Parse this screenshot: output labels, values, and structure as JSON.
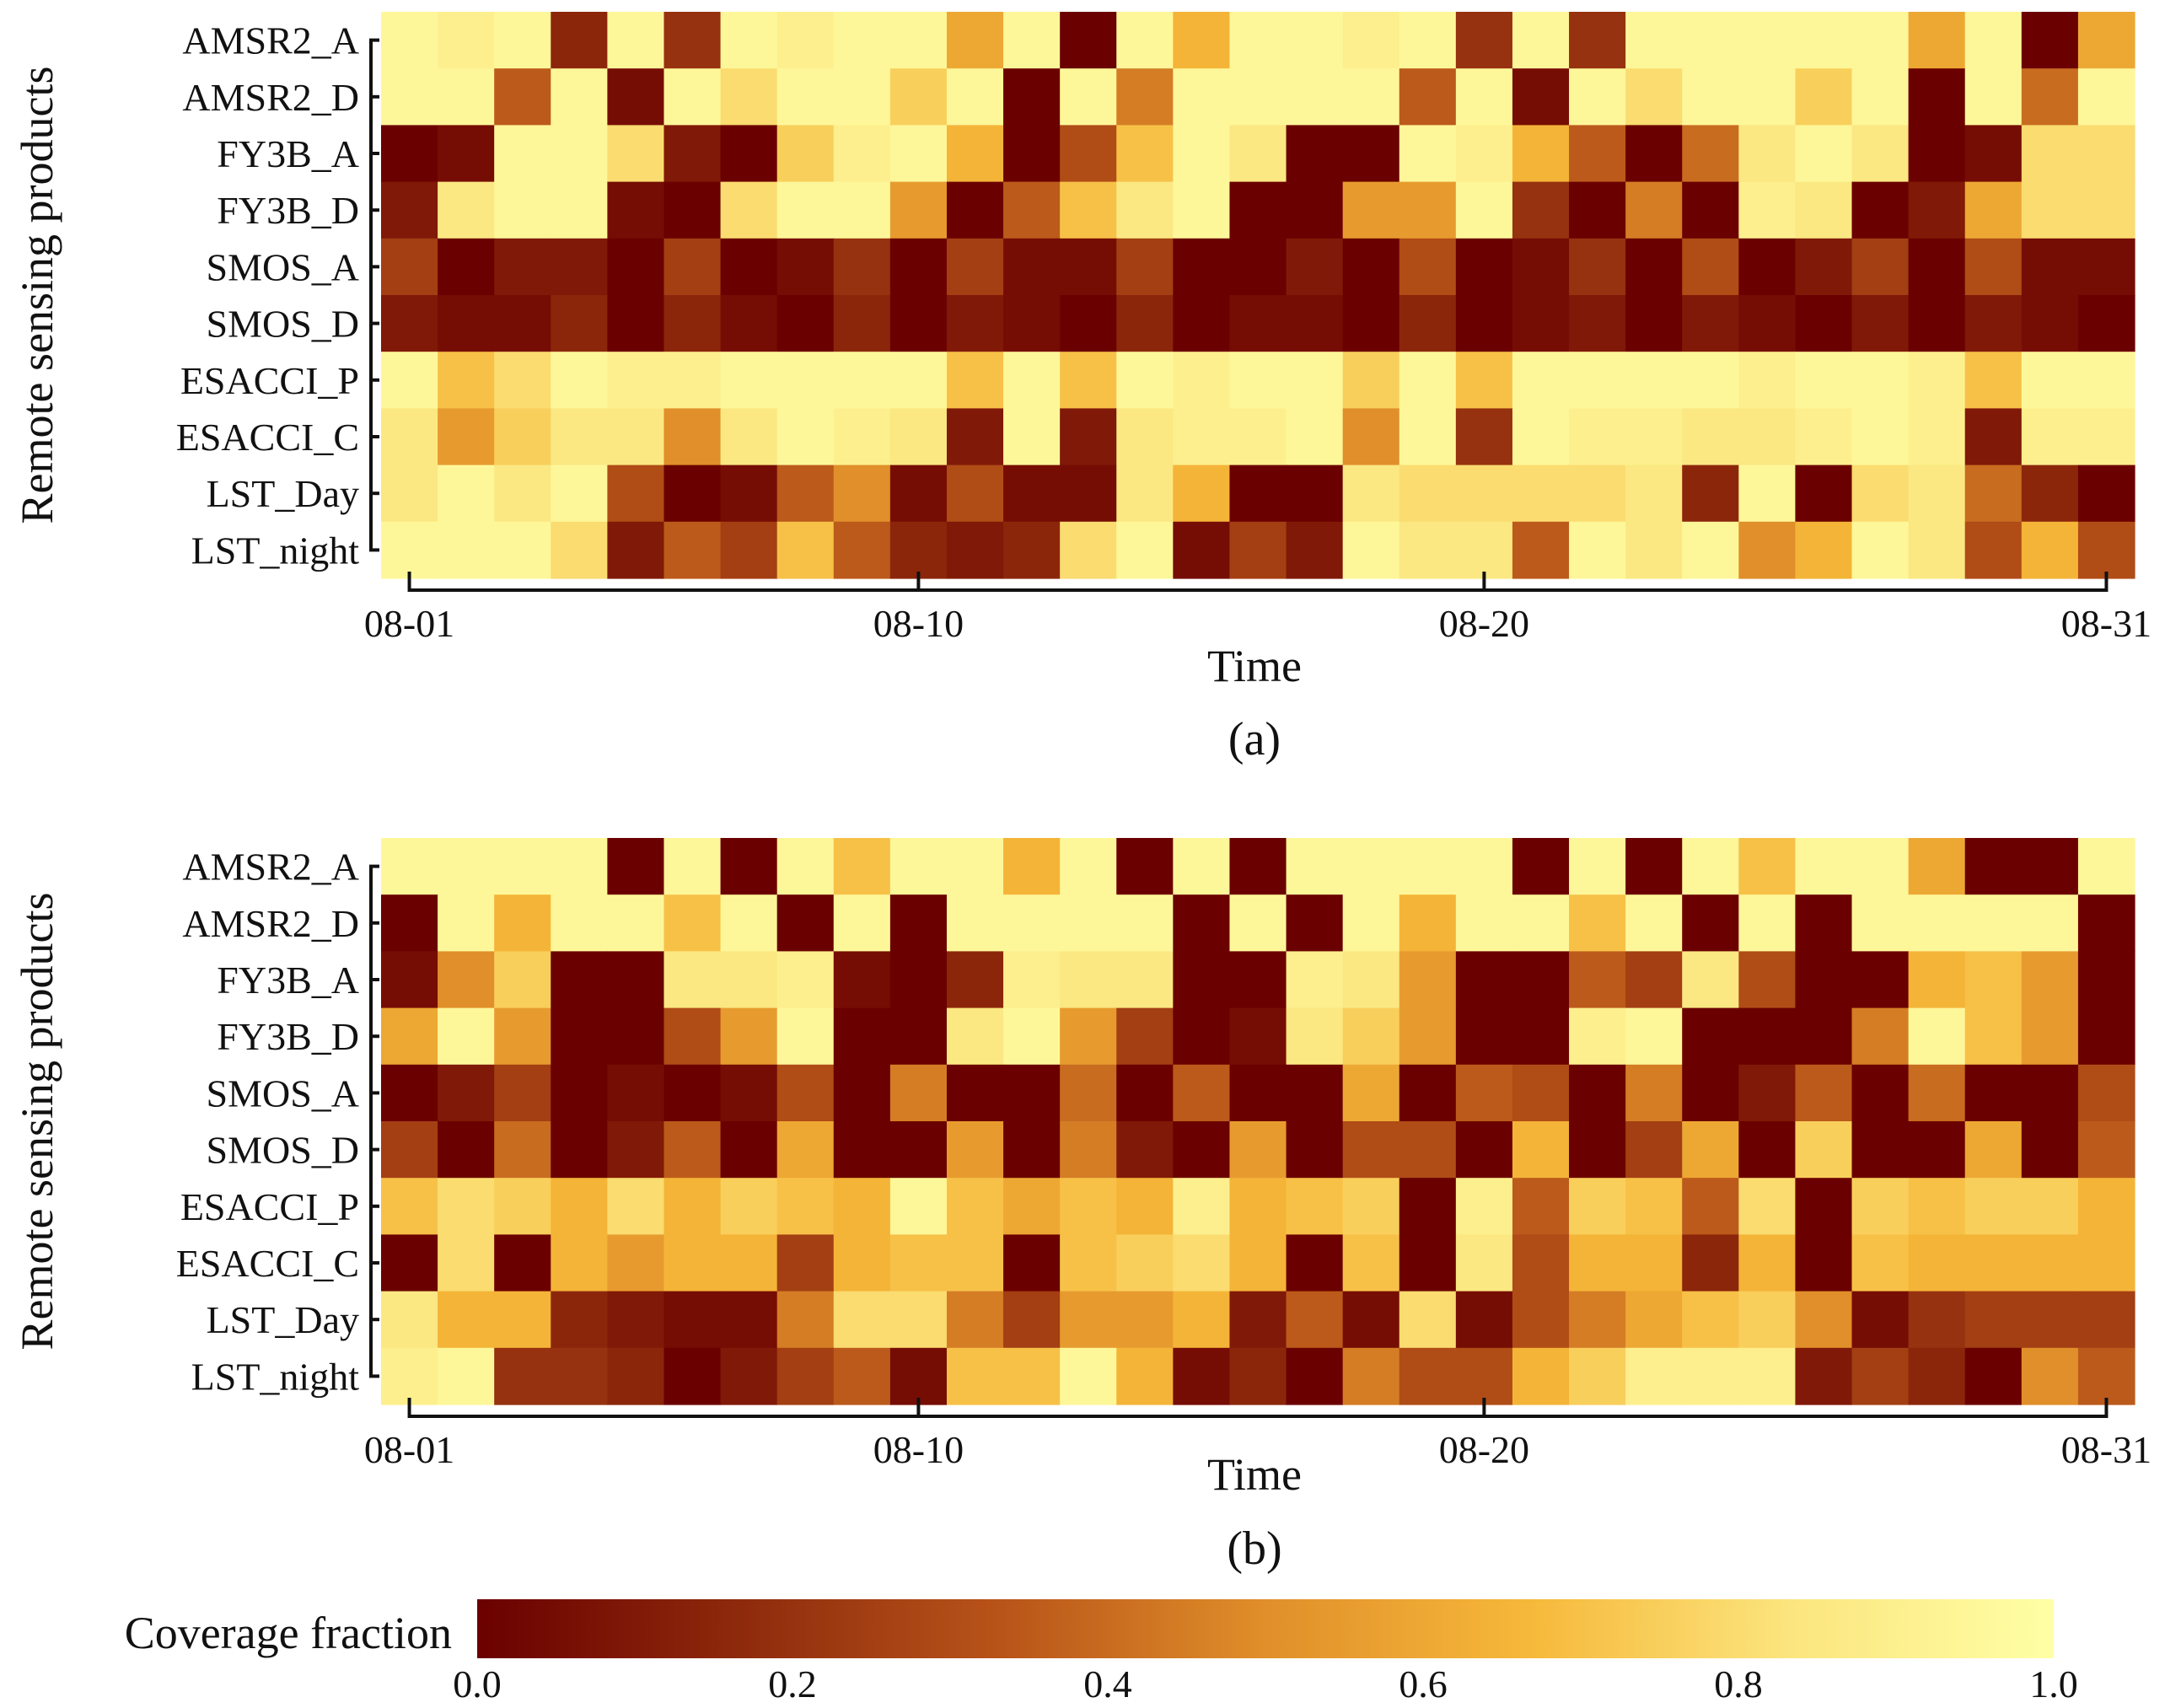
{
  "colors": {
    "scale": [
      "#6b0000",
      "#8e2a0c",
      "#b85419",
      "#e08f2a",
      "#f6b83a",
      "#fbe57e",
      "#ffffa6"
    ],
    "axis": "#111111"
  },
  "chart_data": [
    {
      "type": "heatmap",
      "caption": "(a)",
      "xlabel": "Time",
      "ylabel": "Remote sensing products",
      "x_tick_labels": [
        "08-01",
        "08-10",
        "08-20",
        "08-31"
      ],
      "x_tick_columns": [
        0,
        9,
        19,
        30
      ],
      "rows": [
        "AMSR2_A",
        "AMSR2_D",
        "FY3B_A",
        "FY3B_D",
        "SMOS_A",
        "SMOS_D",
        "ESACCI_P",
        "ESACCI_C",
        "LST_Day",
        "LST_night"
      ],
      "days": 31,
      "values": [
        [
          0.95,
          0.9,
          0.95,
          0.15,
          0.95,
          0.2,
          0.95,
          0.9,
          0.95,
          0.95,
          0.6,
          0.95,
          0.0,
          0.95,
          0.65,
          0.95,
          0.95,
          0.9,
          0.95,
          0.2,
          0.95,
          0.2,
          0.95,
          0.95,
          0.95,
          0.95,
          0.95,
          0.6,
          0.95,
          0.0,
          0.6
        ],
        [
          0.95,
          0.95,
          0.35,
          0.95,
          0.05,
          0.95,
          0.8,
          0.95,
          0.95,
          0.75,
          0.95,
          0.0,
          0.95,
          0.45,
          0.95,
          0.95,
          0.95,
          0.95,
          0.35,
          0.95,
          0.05,
          0.95,
          0.8,
          0.95,
          0.95,
          0.75,
          0.95,
          0.0,
          0.95,
          0.4,
          0.95
        ],
        [
          0.0,
          0.05,
          0.95,
          0.95,
          0.8,
          0.1,
          0.0,
          0.75,
          0.9,
          0.95,
          0.65,
          0.0,
          0.3,
          0.7,
          0.95,
          0.85,
          0.0,
          0.0,
          0.95,
          0.9,
          0.65,
          0.35,
          0.0,
          0.4,
          0.85,
          0.95,
          0.85,
          0.0,
          0.05,
          0.8,
          0.8
        ],
        [
          0.1,
          0.85,
          0.95,
          0.95,
          0.05,
          0.0,
          0.8,
          0.95,
          0.95,
          0.55,
          0.0,
          0.35,
          0.7,
          0.85,
          0.95,
          0.0,
          0.0,
          0.55,
          0.55,
          0.95,
          0.2,
          0.0,
          0.45,
          0.0,
          0.9,
          0.85,
          0.0,
          0.1,
          0.6,
          0.8,
          0.8
        ],
        [
          0.25,
          0.0,
          0.1,
          0.1,
          0.0,
          0.25,
          0.0,
          0.05,
          0.2,
          0.0,
          0.25,
          0.05,
          0.05,
          0.25,
          0.0,
          0.0,
          0.1,
          0.0,
          0.3,
          0.0,
          0.05,
          0.2,
          0.0,
          0.3,
          0.0,
          0.1,
          0.25,
          0.0,
          0.3,
          0.05,
          0.05
        ],
        [
          0.1,
          0.05,
          0.05,
          0.15,
          0.0,
          0.15,
          0.05,
          0.0,
          0.15,
          0.0,
          0.1,
          0.05,
          0.0,
          0.15,
          0.0,
          0.05,
          0.05,
          0.0,
          0.15,
          0.0,
          0.05,
          0.1,
          0.0,
          0.1,
          0.05,
          0.0,
          0.1,
          0.0,
          0.1,
          0.05,
          0.0
        ],
        [
          0.95,
          0.7,
          0.8,
          0.95,
          0.9,
          0.9,
          0.95,
          0.95,
          0.95,
          0.95,
          0.7,
          0.95,
          0.7,
          0.95,
          0.9,
          0.95,
          0.95,
          0.75,
          0.95,
          0.7,
          0.95,
          0.95,
          0.95,
          0.95,
          0.9,
          0.95,
          0.95,
          0.9,
          0.7,
          0.95,
          0.95
        ],
        [
          0.85,
          0.55,
          0.75,
          0.85,
          0.85,
          0.5,
          0.85,
          0.95,
          0.9,
          0.85,
          0.1,
          0.95,
          0.1,
          0.85,
          0.9,
          0.9,
          0.95,
          0.5,
          0.95,
          0.2,
          0.95,
          0.9,
          0.9,
          0.85,
          0.85,
          0.9,
          0.95,
          0.9,
          0.1,
          0.9,
          0.9
        ],
        [
          0.85,
          0.95,
          0.85,
          0.95,
          0.3,
          0.0,
          0.05,
          0.35,
          0.5,
          0.05,
          0.3,
          0.05,
          0.05,
          0.85,
          0.65,
          0.0,
          0.0,
          0.85,
          0.8,
          0.8,
          0.8,
          0.8,
          0.85,
          0.15,
          0.95,
          0.0,
          0.8,
          0.85,
          0.4,
          0.15,
          0.0
        ],
        [
          0.95,
          0.95,
          0.95,
          0.8,
          0.1,
          0.35,
          0.25,
          0.7,
          0.35,
          0.15,
          0.1,
          0.15,
          0.8,
          0.95,
          0.05,
          0.25,
          0.1,
          0.95,
          0.85,
          0.85,
          0.35,
          0.95,
          0.85,
          0.95,
          0.5,
          0.65,
          0.95,
          0.85,
          0.3,
          0.65,
          0.3
        ]
      ]
    },
    {
      "type": "heatmap",
      "caption": "(b)",
      "xlabel": "Time",
      "ylabel": "Remote sensing products",
      "x_tick_labels": [
        "08-01",
        "08-10",
        "08-20",
        "08-31"
      ],
      "x_tick_columns": [
        0,
        9,
        19,
        30
      ],
      "rows": [
        "AMSR2_A",
        "AMSR2_D",
        "FY3B_A",
        "FY3B_D",
        "SMOS_A",
        "SMOS_D",
        "ESACCI_P",
        "ESACCI_C",
        "LST_Day",
        "LST_night"
      ],
      "days": 31,
      "values": [
        [
          0.95,
          0.95,
          0.95,
          0.95,
          0.0,
          0.95,
          0.0,
          0.95,
          0.7,
          0.95,
          0.95,
          0.65,
          0.95,
          0.0,
          0.95,
          0.0,
          0.95,
          0.95,
          0.95,
          0.95,
          0.0,
          0.95,
          0.0,
          0.95,
          0.7,
          0.95,
          0.95,
          0.6,
          0.0,
          0.0,
          0.95
        ],
        [
          0.0,
          0.95,
          0.65,
          0.95,
          0.95,
          0.7,
          0.95,
          0.0,
          0.95,
          0.0,
          0.95,
          0.95,
          0.95,
          0.95,
          0.0,
          0.95,
          0.0,
          0.95,
          0.65,
          0.95,
          0.95,
          0.7,
          0.95,
          0.0,
          0.95,
          0.0,
          0.95,
          0.95,
          0.95,
          0.95,
          0.0
        ],
        [
          0.05,
          0.5,
          0.75,
          0.0,
          0.0,
          0.85,
          0.85,
          0.9,
          0.05,
          0.0,
          0.15,
          0.9,
          0.85,
          0.85,
          0.0,
          0.0,
          0.9,
          0.85,
          0.55,
          0.0,
          0.0,
          0.35,
          0.25,
          0.85,
          0.3,
          0.0,
          0.0,
          0.65,
          0.7,
          0.55,
          0.0
        ],
        [
          0.6,
          0.95,
          0.55,
          0.0,
          0.0,
          0.3,
          0.55,
          0.95,
          0.0,
          0.0,
          0.85,
          0.95,
          0.55,
          0.25,
          0.0,
          0.05,
          0.85,
          0.75,
          0.55,
          0.0,
          0.0,
          0.9,
          0.95,
          0.0,
          0.0,
          0.0,
          0.45,
          0.95,
          0.7,
          0.55,
          0.0
        ],
        [
          0.0,
          0.1,
          0.25,
          0.0,
          0.05,
          0.0,
          0.05,
          0.3,
          0.0,
          0.45,
          0.0,
          0.0,
          0.4,
          0.0,
          0.35,
          0.0,
          0.0,
          0.6,
          0.0,
          0.35,
          0.3,
          0.0,
          0.45,
          0.0,
          0.1,
          0.35,
          0.0,
          0.4,
          0.0,
          0.0,
          0.3
        ],
        [
          0.25,
          0.0,
          0.4,
          0.0,
          0.1,
          0.35,
          0.0,
          0.6,
          0.0,
          0.0,
          0.55,
          0.0,
          0.45,
          0.1,
          0.0,
          0.55,
          0.0,
          0.3,
          0.3,
          0.0,
          0.65,
          0.0,
          0.25,
          0.6,
          0.0,
          0.75,
          0.0,
          0.0,
          0.6,
          0.0,
          0.35
        ],
        [
          0.7,
          0.8,
          0.75,
          0.65,
          0.8,
          0.65,
          0.75,
          0.7,
          0.65,
          0.95,
          0.7,
          0.6,
          0.7,
          0.65,
          0.9,
          0.65,
          0.7,
          0.75,
          0.0,
          0.9,
          0.35,
          0.75,
          0.7,
          0.35,
          0.8,
          0.0,
          0.75,
          0.7,
          0.75,
          0.75,
          0.65
        ],
        [
          0.0,
          0.8,
          0.0,
          0.65,
          0.55,
          0.65,
          0.65,
          0.25,
          0.65,
          0.7,
          0.7,
          0.0,
          0.7,
          0.75,
          0.8,
          0.65,
          0.0,
          0.7,
          0.0,
          0.85,
          0.3,
          0.65,
          0.65,
          0.15,
          0.65,
          0.0,
          0.7,
          0.65,
          0.65,
          0.65,
          0.65
        ],
        [
          0.85,
          0.65,
          0.65,
          0.15,
          0.1,
          0.05,
          0.05,
          0.45,
          0.8,
          0.8,
          0.45,
          0.25,
          0.55,
          0.55,
          0.65,
          0.1,
          0.35,
          0.05,
          0.8,
          0.05,
          0.3,
          0.45,
          0.6,
          0.7,
          0.75,
          0.5,
          0.05,
          0.2,
          0.25,
          0.25,
          0.25
        ],
        [
          0.9,
          0.95,
          0.2,
          0.2,
          0.15,
          0.0,
          0.1,
          0.25,
          0.35,
          0.05,
          0.7,
          0.7,
          0.95,
          0.65,
          0.05,
          0.15,
          0.0,
          0.45,
          0.3,
          0.3,
          0.65,
          0.75,
          0.9,
          0.9,
          0.9,
          0.1,
          0.25,
          0.15,
          0.0,
          0.5,
          0.35
        ]
      ]
    }
  ],
  "colorbar": {
    "label": "Coverage fraction",
    "min": 0.0,
    "max": 1.0,
    "tick_values": [
      0.0,
      0.2,
      0.4,
      0.6,
      0.8,
      1.0
    ],
    "tick_labels": [
      "0.0",
      "0.2",
      "0.4",
      "0.6",
      "0.8",
      "1.0"
    ]
  }
}
